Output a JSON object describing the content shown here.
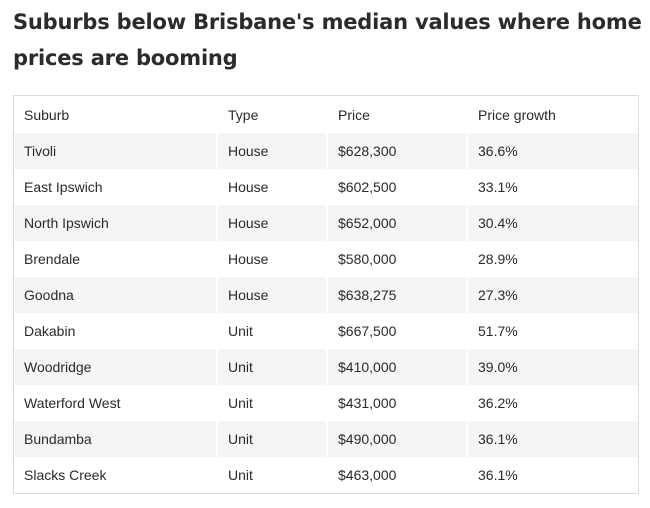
{
  "title": "Suburbs below Brisbane's median values where home prices are booming",
  "table": {
    "headers": [
      "Suburb",
      "Type",
      "Price",
      "Price growth"
    ],
    "rows": [
      [
        "Tivoli",
        "House",
        "$628,300",
        "36.6%"
      ],
      [
        "East Ipswich",
        "House",
        "$602,500",
        "33.1%"
      ],
      [
        "North Ipswich",
        "House",
        "$652,000",
        "30.4%"
      ],
      [
        "Brendale",
        "House",
        "$580,000",
        "28.9%"
      ],
      [
        "Goodna",
        "House",
        "$638,275",
        "27.3%"
      ],
      [
        "Dakabin",
        "Unit",
        "$667,500",
        "51.7%"
      ],
      [
        "Woodridge",
        "Unit",
        "$410,000",
        "39.0%"
      ],
      [
        "Waterford West",
        "Unit",
        "$431,000",
        "36.2%"
      ],
      [
        "Bundamba",
        "Unit",
        "$490,000",
        "36.1%"
      ],
      [
        "Slacks Creek",
        "Unit",
        "$463,000",
        "36.1%"
      ]
    ]
  }
}
